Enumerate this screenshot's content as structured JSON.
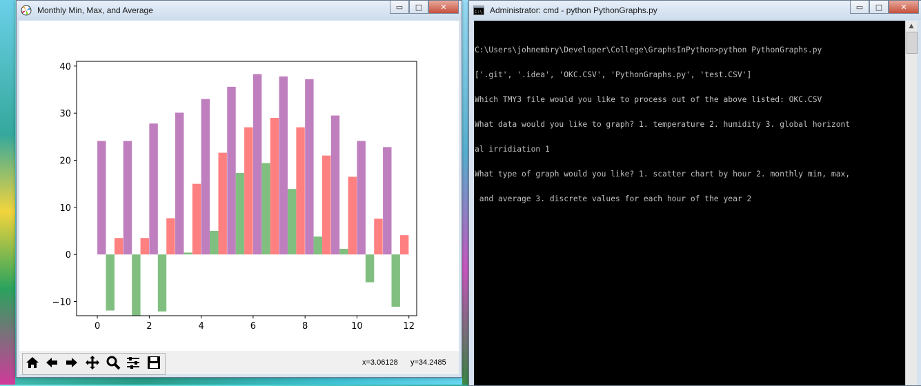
{
  "figure_window": {
    "title": "Monthly Min, Max, and Average",
    "controls": {
      "minimize": "▭",
      "maximize": "□",
      "close": "✕"
    },
    "toolbar": {
      "buttons": [
        "home-icon",
        "back-arrow-icon",
        "forward-arrow-icon",
        "pan-move-icon",
        "zoom-magnifier-icon",
        "configure-subplots-icon",
        "save-floppy-icon"
      ],
      "x_readout": "x=3.06128",
      "y_readout": "y=34.2485"
    }
  },
  "chart_data": {
    "type": "bar",
    "x_ticks": [
      0,
      2,
      4,
      6,
      8,
      10,
      12
    ],
    "y_ticks": [
      -10,
      0,
      10,
      20,
      30,
      40
    ],
    "xlim": [
      -0.8,
      12.3
    ],
    "ylim": [
      -13,
      41
    ],
    "bar_width": 0.33,
    "x": [
      0,
      1,
      2,
      3,
      4,
      5,
      6,
      7,
      8,
      9,
      10,
      11
    ],
    "series": [
      {
        "color": "#bf7fbf",
        "offset": 0,
        "values": [
          24.1,
          24.1,
          27.8,
          30.1,
          33.0,
          35.6,
          38.3,
          37.8,
          37.2,
          29.5,
          24.1,
          22.8
        ]
      },
      {
        "color": "#80bf80",
        "offset": 1,
        "values": [
          -11.9,
          -13.0,
          -12.1,
          0.4,
          5.0,
          17.3,
          19.4,
          13.9,
          3.8,
          1.2,
          -5.9,
          -11.1
        ]
      },
      {
        "color": "#ff8080",
        "offset": 2,
        "values": [
          3.5,
          3.5,
          7.7,
          15.0,
          21.6,
          27.0,
          29.0,
          27.0,
          21.0,
          16.5,
          7.6,
          4.1
        ]
      }
    ]
  },
  "console_window": {
    "title": "Administrator: cmd - python  PythonGraphs.py",
    "controls": {
      "minimize": "▭",
      "maximize": "□",
      "close": "✕"
    },
    "lines": [
      "C:\\Users\\johnembry\\Developer\\College\\GraphsInPython>python PythonGraphs.py",
      "['.git', '.idea', 'OKC.CSV', 'PythonGraphs.py', 'test.CSV']",
      "Which TMY3 file would you like to process out of the above listed: OKC.CSV",
      "What data would you like to graph? 1. temperature 2. humidity 3. global horizont",
      "al irridiation 1",
      "What type of graph would you like? 1. scatter chart by hour 2. monthly min, max,",
      " and average 3. discrete values for each hour of the year 2"
    ]
  }
}
